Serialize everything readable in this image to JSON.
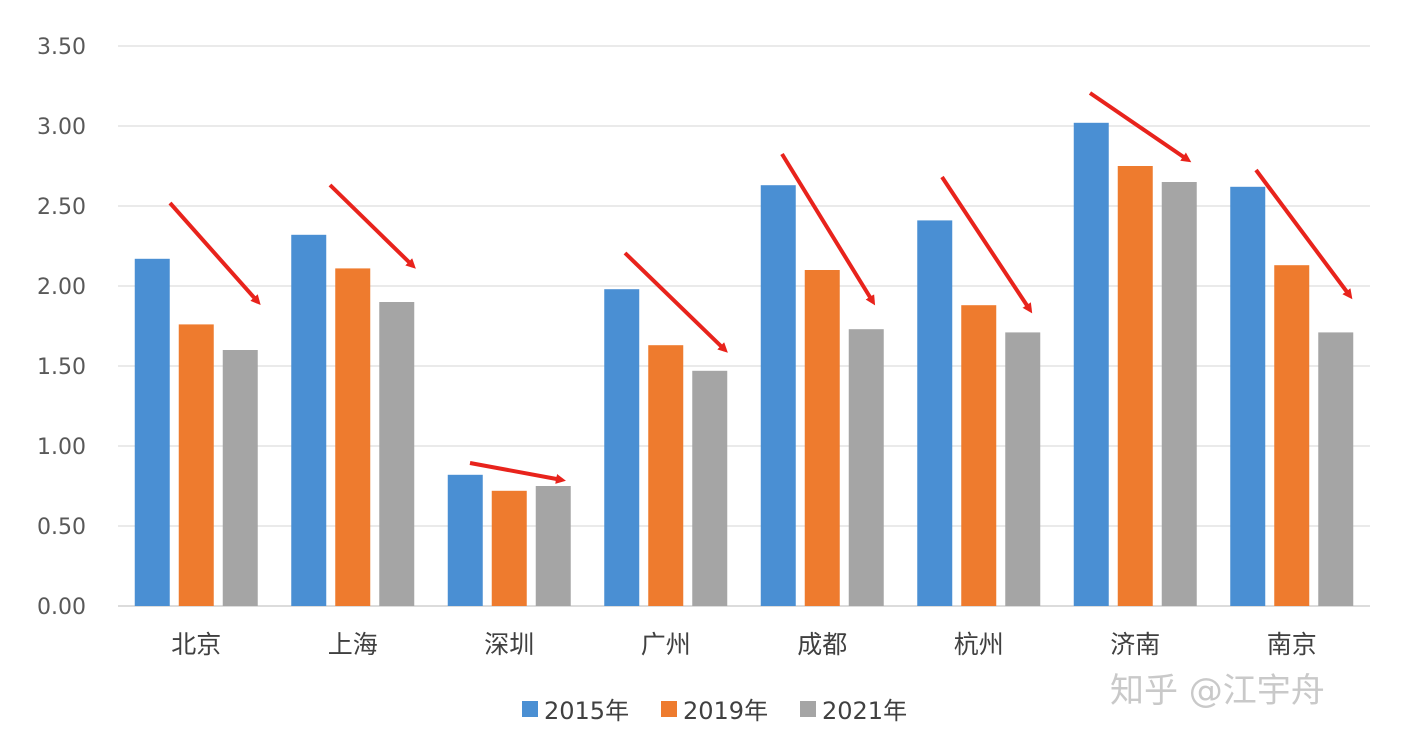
{
  "chart_data": {
    "type": "bar",
    "categories": [
      "北京",
      "上海",
      "深圳",
      "广州",
      "成都",
      "杭州",
      "济南",
      "南京"
    ],
    "series": [
      {
        "name": "2015年",
        "color": "#4a8fd3",
        "values": [
          2.17,
          2.32,
          0.82,
          1.98,
          2.63,
          2.41,
          3.02,
          2.62
        ]
      },
      {
        "name": "2019年",
        "color": "#ee7b2e",
        "values": [
          1.76,
          2.11,
          0.72,
          1.63,
          2.1,
          1.88,
          2.75,
          2.13
        ]
      },
      {
        "name": "2021年",
        "color": "#a5a5a5",
        "values": [
          1.6,
          1.9,
          0.75,
          1.47,
          1.73,
          1.71,
          2.65,
          1.71
        ]
      }
    ],
    "ylim": [
      0,
      3.5
    ],
    "yticks": [
      "0.00",
      "0.50",
      "1.00",
      "1.50",
      "2.00",
      "2.50",
      "3.00",
      "3.50"
    ],
    "grid": true,
    "legend_position": "bottom",
    "annotations": "red arrows over each city's bar group indicating downward trend",
    "arrow_color": "#e8231c"
  },
  "watermark": "知乎 @江宇舟"
}
